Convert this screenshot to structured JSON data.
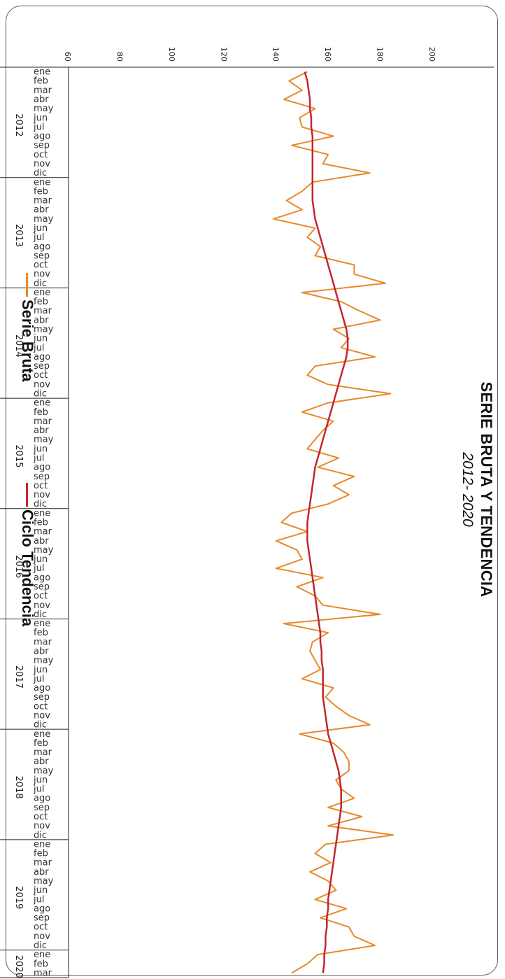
{
  "chart_data": {
    "type": "line",
    "title": "SERIE BRUTA Y TENDENCIA",
    "subtitle": "2012- 2020",
    "ylim": [
      60,
      200
    ],
    "y_ticks": [
      "60",
      "80",
      "100",
      "120",
      "140",
      "160",
      "180",
      "200"
    ],
    "month_labels": [
      "ene",
      "feb",
      "mar",
      "abr",
      "may",
      "jun",
      "jul",
      "ago",
      "sep",
      "oct",
      "nov",
      "dic"
    ],
    "years": [
      {
        "label": "2012",
        "months": 12
      },
      {
        "label": "2013",
        "months": 12
      },
      {
        "label": "2014",
        "months": 12
      },
      {
        "label": "2015",
        "months": 12
      },
      {
        "label": "2016",
        "months": 12
      },
      {
        "label": "2017",
        "months": 12
      },
      {
        "label": "2018",
        "months": 12
      },
      {
        "label": "2019",
        "months": 12
      },
      {
        "label": "2020",
        "months": 3
      }
    ],
    "grid": false,
    "legend_position": "bottom",
    "series": [
      {
        "name": "Serie Bruta",
        "color": "#e8892b",
        "values": [
          152,
          145,
          150,
          143,
          155,
          149,
          150,
          162,
          146,
          160,
          158,
          176,
          154,
          150,
          144,
          150,
          139,
          155,
          152,
          157,
          155,
          170,
          170,
          182,
          150,
          165,
          172,
          180,
          162,
          168,
          165,
          178,
          155,
          152,
          160,
          184,
          160,
          150,
          162,
          158,
          155,
          152,
          164,
          156,
          170,
          162,
          168,
          160,
          146,
          142,
          152,
          140,
          148,
          150,
          140,
          158,
          148,
          155,
          158,
          180,
          143,
          160,
          154,
          153,
          155,
          157,
          150,
          162,
          159,
          163,
          168,
          176,
          149,
          162,
          166,
          168,
          168,
          163,
          165,
          170,
          160,
          173,
          160,
          185,
          159,
          155,
          161,
          153,
          160,
          163,
          155,
          167,
          157,
          168,
          170,
          178,
          156,
          152,
          146
        ]
      },
      {
        "name": "Ciclo Tendencia",
        "color": "#c0282e",
        "values": [
          151,
          152,
          152.5,
          153,
          153,
          153.5,
          153.5,
          154,
          154,
          154,
          154,
          154,
          154,
          154,
          154,
          154.5,
          155,
          156,
          157,
          158,
          159,
          160,
          161,
          162,
          163,
          164,
          165,
          166,
          167,
          167.5,
          167.5,
          167,
          166,
          165,
          164,
          163,
          162,
          161,
          160,
          159,
          158,
          157,
          156,
          155,
          154.5,
          154,
          153.5,
          153,
          152.5,
          152,
          152,
          152,
          152.5,
          153,
          153.5,
          154,
          154.5,
          155,
          155.5,
          156,
          156.5,
          157,
          157,
          157.5,
          157.5,
          158,
          158,
          158,
          158,
          158.5,
          159,
          159.5,
          160,
          161,
          162,
          163,
          164,
          164.5,
          165,
          165,
          165,
          164.5,
          164,
          163.5,
          163,
          162.5,
          162,
          161.5,
          161,
          160.5,
          160,
          160,
          159.5,
          159.5,
          159,
          159,
          158.5,
          158.5,
          158
        ]
      }
    ]
  }
}
